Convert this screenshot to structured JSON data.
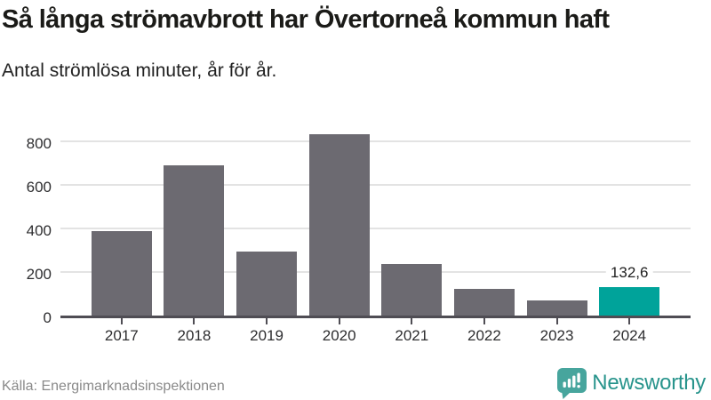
{
  "header": {
    "title": "Så långa strömavbrott har Övertorneå kommun haft",
    "subtitle": "Antal strömlösa minuter, år för år."
  },
  "chart_data": {
    "type": "bar",
    "categories": [
      "2017",
      "2018",
      "2019",
      "2020",
      "2021",
      "2022",
      "2023",
      "2024"
    ],
    "values": [
      390,
      693,
      295,
      835,
      237,
      122,
      70,
      132.6
    ],
    "title": "Så långa strömavbrott har Övertorneå kommun haft",
    "subtitle": "Antal strömlösa minuter, år för år.",
    "xlabel": "",
    "ylabel": "",
    "ylim": [
      0,
      900
    ],
    "yticks": [
      0,
      200,
      400,
      600,
      800
    ],
    "grid": true,
    "legend": "none",
    "highlight_index": 7,
    "value_labels": {
      "7": "132,6"
    },
    "colors": {
      "bar_default": "#6c6a71",
      "bar_highlight": "#00a39a"
    }
  },
  "footer": {
    "source": "Källa: Energimarknadsinspektionen",
    "brand": "Newsworthy"
  },
  "icons": {
    "brand_logo": "newsworthy-bar-chart-bubble-icon"
  },
  "colors": {
    "accent_teal": "#00a39a",
    "bar_gray": "#6c6a71",
    "logo_teal": "#47a59d",
    "logo_text_teal": "#28948c",
    "text_dark": "#1b1b18",
    "source_gray": "#8a8a8a"
  }
}
